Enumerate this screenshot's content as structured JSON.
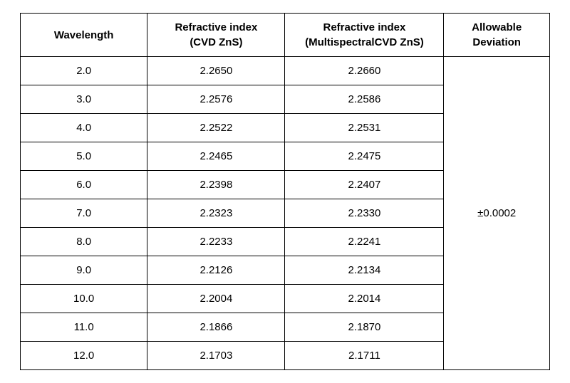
{
  "table": {
    "columns": [
      {
        "line1": "Wavelength",
        "line2": ""
      },
      {
        "line1": "Refractive index",
        "line2": "(CVD ZnS)"
      },
      {
        "line1": "Refractive index",
        "line2": "(MultispectralCVD ZnS)"
      },
      {
        "line1": "Allowable",
        "line2": "Deviation"
      }
    ],
    "rows": [
      {
        "wavelength": "2.0",
        "cvd": "2.2650",
        "ms": "2.2660"
      },
      {
        "wavelength": "3.0",
        "cvd": "2.2576",
        "ms": "2.2586"
      },
      {
        "wavelength": "4.0",
        "cvd": "2.2522",
        "ms": "2.2531"
      },
      {
        "wavelength": "5.0",
        "cvd": "2.2465",
        "ms": "2.2475"
      },
      {
        "wavelength": "6.0",
        "cvd": "2.2398",
        "ms": "2.2407"
      },
      {
        "wavelength": "7.0",
        "cvd": "2.2323",
        "ms": "2.2330"
      },
      {
        "wavelength": "8.0",
        "cvd": "2.2233",
        "ms": "2.2241"
      },
      {
        "wavelength": "9.0",
        "cvd": "2.2126",
        "ms": "2.2134"
      },
      {
        "wavelength": "10.0",
        "cvd": "2.2004",
        "ms": "2.2014"
      },
      {
        "wavelength": "11.0",
        "cvd": "2.1866",
        "ms": "2.1870"
      },
      {
        "wavelength": "12.0",
        "cvd": "2.1703",
        "ms": "2.1711"
      }
    ],
    "deviation": "±0.0002",
    "border_color": "#000000",
    "background_color": "#ffffff",
    "text_color": "#000000",
    "header_fontsize": 15,
    "cell_fontsize": 15
  }
}
